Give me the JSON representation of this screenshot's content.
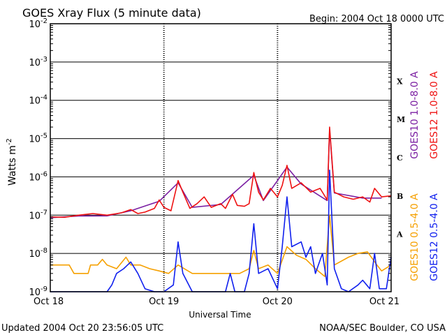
{
  "header": {
    "title": "GOES Xray Flux (5 minute data)",
    "begin": "Begin:  2004 Oct 18 0000 UTC"
  },
  "footer": {
    "updated": "Updated 2004 Oct 20 23:56:05 UTC",
    "credit": "NOAA/SEC Boulder, CO USA"
  },
  "colors": {
    "goes10_long": "#7b1fa2",
    "goes12_long": "#ee1111",
    "goes10_short": "#f5a000",
    "goes12_short": "#1020ee"
  },
  "chart_data": {
    "type": "line",
    "title": "GOES Xray Flux (5 minute data)",
    "xlabel": "Universal Time",
    "ylabel": "Watts m",
    "ylabel_sup": "-2",
    "yscale": "log",
    "ylim": [
      1e-09,
      0.01
    ],
    "xlim": [
      "2004-10-18T00:00",
      "2004-10-21T00:00"
    ],
    "x_ticks": [
      {
        "t": "2004-10-18T00:00",
        "label": "Oct 18"
      },
      {
        "t": "2004-10-19T00:00",
        "label": "Oct 19"
      },
      {
        "t": "2004-10-20T00:00",
        "label": "Oct 20"
      },
      {
        "t": "2004-10-21T00:00",
        "label": "Oct 21"
      }
    ],
    "y_ticks": [
      {
        "v": 1e-09,
        "base": "10",
        "exp": "-9"
      },
      {
        "v": 1e-08,
        "base": "10",
        "exp": "-8"
      },
      {
        "v": 1e-07,
        "base": "10",
        "exp": "-7"
      },
      {
        "v": 1e-06,
        "base": "10",
        "exp": "-6"
      },
      {
        "v": 1e-05,
        "base": "10",
        "exp": "-5"
      },
      {
        "v": 0.0001,
        "base": "10",
        "exp": "-4"
      },
      {
        "v": 0.001,
        "base": "10",
        "exp": "-3"
      },
      {
        "v": 0.01,
        "base": "10",
        "exp": "-2"
      }
    ],
    "flare_classes": [
      {
        "label": "A",
        "v": 3.16e-08
      },
      {
        "label": "B",
        "v": 3.16e-07
      },
      {
        "label": "C",
        "v": 3.16e-06
      },
      {
        "label": "M",
        "v": 3.16e-05
      },
      {
        "label": "X",
        "v": 0.000316
      }
    ],
    "grid": "horizontal at decades; vertical dotted at day boundaries",
    "legend_position": "right",
    "series": [
      {
        "name": "GOES12 1.0-8.0 A",
        "color": "#ee1111",
        "points": [
          [
            "2004-10-18T00:00",
            9e-08
          ],
          [
            "2004-10-18T03:00",
            8.8e-08
          ],
          [
            "2004-10-18T06:00",
            1e-07
          ],
          [
            "2004-10-18T09:00",
            1.1e-07
          ],
          [
            "2004-10-18T12:00",
            1e-07
          ],
          [
            "2004-10-18T15:00",
            1.15e-07
          ],
          [
            "2004-10-18T17:00",
            1.4e-07
          ],
          [
            "2004-10-18T18:30",
            1.1e-07
          ],
          [
            "2004-10-18T20:00",
            1.2e-07
          ],
          [
            "2004-10-18T22:00",
            1.5e-07
          ],
          [
            "2004-10-18T23:00",
            2.5e-07
          ],
          [
            "2004-10-19T00:00",
            1.6e-07
          ],
          [
            "2004-10-19T01:30",
            1.3e-07
          ],
          [
            "2004-10-19T03:00",
            8e-07
          ],
          [
            "2004-10-19T04:00",
            4e-07
          ],
          [
            "2004-10-19T05:30",
            1.5e-07
          ],
          [
            "2004-10-19T07:00",
            2e-07
          ],
          [
            "2004-10-19T08:30",
            3e-07
          ],
          [
            "2004-10-19T10:00",
            1.6e-07
          ],
          [
            "2004-10-19T12:00",
            2e-07
          ],
          [
            "2004-10-19T13:00",
            1.5e-07
          ],
          [
            "2004-10-19T14:30",
            3.5e-07
          ],
          [
            "2004-10-19T15:30",
            1.8e-07
          ],
          [
            "2004-10-19T17:00",
            1.7e-07
          ],
          [
            "2004-10-19T18:00",
            2e-07
          ],
          [
            "2004-10-19T19:00",
            1.3e-06
          ],
          [
            "2004-10-19T20:00",
            4e-07
          ],
          [
            "2004-10-19T21:00",
            2.5e-07
          ],
          [
            "2004-10-19T22:30",
            5e-07
          ],
          [
            "2004-10-20T00:00",
            3e-07
          ],
          [
            "2004-10-20T01:00",
            6e-07
          ],
          [
            "2004-10-20T02:00",
            2e-06
          ],
          [
            "2004-10-20T03:00",
            5e-07
          ],
          [
            "2004-10-20T05:00",
            7e-07
          ],
          [
            "2004-10-20T07:00",
            4e-07
          ],
          [
            "2004-10-20T09:00",
            5e-07
          ],
          [
            "2004-10-20T10:30",
            2.5e-07
          ],
          [
            "2004-10-20T11:00",
            2e-05
          ],
          [
            "2004-10-20T12:00",
            4e-07
          ],
          [
            "2004-10-20T14:00",
            3e-07
          ],
          [
            "2004-10-20T16:00",
            2.6e-07
          ],
          [
            "2004-10-20T18:00",
            3e-07
          ],
          [
            "2004-10-20T19:30",
            2.2e-07
          ],
          [
            "2004-10-20T20:30",
            5e-07
          ],
          [
            "2004-10-20T22:00",
            3e-07
          ],
          [
            "2004-10-21T00:00",
            3.2e-07
          ]
        ]
      },
      {
        "name": "GOES10 1.0-8.0 A",
        "color": "#7b1fa2",
        "points": [
          [
            "2004-10-18T00:00",
            8.6e-08
          ],
          [
            "2004-10-18T06:00",
            9.5e-08
          ],
          [
            "2004-10-18T12:00",
            9.6e-08
          ],
          [
            "2004-10-18T17:00",
            1.3e-07
          ],
          [
            "2004-10-18T23:00",
            2.3e-07
          ],
          [
            "2004-10-19T03:00",
            7e-07
          ],
          [
            "2004-10-19T06:00",
            1.6e-07
          ],
          [
            "2004-10-19T12:00",
            1.9e-07
          ],
          [
            "2004-10-19T19:00",
            1.1e-06
          ],
          [
            "2004-10-19T21:00",
            2.4e-07
          ],
          [
            "2004-10-20T02:00",
            1.8e-06
          ],
          [
            "2004-10-20T05:00",
            6.5e-07
          ],
          [
            "2004-10-20T10:30",
            2.4e-07
          ],
          [
            "2004-10-20T11:00",
            1.7e-05
          ],
          [
            "2004-10-20T12:00",
            3.8e-07
          ],
          [
            "2004-10-20T18:00",
            2.8e-07
          ],
          [
            "2004-10-20T22:00",
            2.8e-07
          ]
        ]
      },
      {
        "name": "GOES10 0.5-4.0 A",
        "color": "#f5a000",
        "points": [
          [
            "2004-10-18T00:00",
            5e-09
          ],
          [
            "2004-10-18T04:00",
            5e-09
          ],
          [
            "2004-10-18T05:00",
            3e-09
          ],
          [
            "2004-10-18T08:00",
            3e-09
          ],
          [
            "2004-10-18T08:30",
            5e-09
          ],
          [
            "2004-10-18T10:00",
            5e-09
          ],
          [
            "2004-10-18T11:00",
            7e-09
          ],
          [
            "2004-10-18T12:00",
            5e-09
          ],
          [
            "2004-10-18T14:00",
            4e-09
          ],
          [
            "2004-10-18T16:00",
            8e-09
          ],
          [
            "2004-10-18T17:00",
            5e-09
          ],
          [
            "2004-10-18T19:00",
            5e-09
          ],
          [
            "2004-10-18T21:00",
            4e-09
          ],
          [
            "2004-10-18T23:00",
            3.5e-09
          ],
          [
            "2004-10-19T01:00",
            3e-09
          ],
          [
            "2004-10-19T03:00",
            5e-09
          ],
          [
            "2004-10-19T06:00",
            3e-09
          ],
          [
            "2004-10-19T09:00",
            3e-09
          ],
          [
            "2004-10-19T12:00",
            3e-09
          ],
          [
            "2004-10-19T16:00",
            3e-09
          ],
          [
            "2004-10-19T18:00",
            4e-09
          ],
          [
            "2004-10-19T19:00",
            1.2e-08
          ],
          [
            "2004-10-19T20:00",
            4e-09
          ],
          [
            "2004-10-19T22:00",
            5e-09
          ],
          [
            "2004-10-20T00:00",
            3e-09
          ],
          [
            "2004-10-20T02:00",
            1.5e-08
          ],
          [
            "2004-10-20T04:00",
            9e-09
          ],
          [
            "2004-10-20T06:00",
            7e-09
          ],
          [
            "2004-10-20T08:00",
            4e-09
          ],
          [
            "2004-10-20T10:00",
            2.5e-09
          ],
          [
            "2004-10-20T11:00",
            1e-07
          ],
          [
            "2004-10-20T12:00",
            5e-09
          ],
          [
            "2004-10-20T15:00",
            8e-09
          ],
          [
            "2004-10-20T17:00",
            1e-08
          ],
          [
            "2004-10-20T19:00",
            1.1e-08
          ],
          [
            "2004-10-20T21:00",
            5e-09
          ],
          [
            "2004-10-20T22:00",
            3.5e-09
          ],
          [
            "2004-10-21T00:00",
            5e-09
          ]
        ]
      },
      {
        "name": "GOES12 0.5-4.0 A",
        "color": "#1020ee",
        "points": [
          [
            "2004-10-18T00:00",
            1e-09
          ],
          [
            "2004-10-18T12:00",
            1e-09
          ],
          [
            "2004-10-18T13:00",
            1.5e-09
          ],
          [
            "2004-10-18T14:00",
            3e-09
          ],
          [
            "2004-10-18T15:30",
            4e-09
          ],
          [
            "2004-10-18T17:00",
            6e-09
          ],
          [
            "2004-10-18T18:30",
            3e-09
          ],
          [
            "2004-10-18T20:00",
            1.2e-09
          ],
          [
            "2004-10-18T22:00",
            1e-09
          ],
          [
            "2004-10-19T00:00",
            1e-09
          ],
          [
            "2004-10-19T02:00",
            1.5e-09
          ],
          [
            "2004-10-19T03:00",
            2e-08
          ],
          [
            "2004-10-19T04:00",
            3e-09
          ],
          [
            "2004-10-19T06:00",
            1e-09
          ],
          [
            "2004-10-19T10:00",
            1e-09
          ],
          [
            "2004-10-19T13:00",
            1e-09
          ],
          [
            "2004-10-19T14:00",
            3e-09
          ],
          [
            "2004-10-19T15:00",
            1e-09
          ],
          [
            "2004-10-19T17:00",
            1e-09
          ],
          [
            "2004-10-19T18:00",
            3e-09
          ],
          [
            "2004-10-19T19:00",
            6e-08
          ],
          [
            "2004-10-19T20:00",
            3e-09
          ],
          [
            "2004-10-19T22:00",
            4e-09
          ],
          [
            "2004-10-20T00:00",
            1.2e-09
          ],
          [
            "2004-10-20T01:00",
            1.5e-08
          ],
          [
            "2004-10-20T02:00",
            3e-07
          ],
          [
            "2004-10-20T03:00",
            1.5e-08
          ],
          [
            "2004-10-20T05:00",
            2e-08
          ],
          [
            "2004-10-20T06:00",
            8e-09
          ],
          [
            "2004-10-20T07:00",
            1.5e-08
          ],
          [
            "2004-10-20T08:00",
            3e-09
          ],
          [
            "2004-10-20T09:30",
            1e-08
          ],
          [
            "2004-10-20T10:30",
            1.5e-09
          ],
          [
            "2004-10-20T11:00",
            1.5e-06
          ],
          [
            "2004-10-20T12:00",
            4e-09
          ],
          [
            "2004-10-20T13:30",
            1.2e-09
          ],
          [
            "2004-10-20T15:00",
            1e-09
          ],
          [
            "2004-10-20T17:00",
            1.5e-09
          ],
          [
            "2004-10-20T18:00",
            2e-09
          ],
          [
            "2004-10-20T19:30",
            1.2e-09
          ],
          [
            "2004-10-20T20:30",
            1e-08
          ],
          [
            "2004-10-20T21:30",
            1.2e-09
          ],
          [
            "2004-10-20T23:00",
            1.2e-09
          ],
          [
            "2004-10-21T00:00",
            8e-09
          ]
        ]
      }
    ],
    "legend": [
      {
        "label": "GOES10 1.0-8.0 A",
        "color": "#7b1fa2"
      },
      {
        "label": "GOES12 1.0-8.0 A",
        "color": "#ee1111"
      },
      {
        "label": "GOES10 0.5-4.0 A",
        "color": "#f5a000"
      },
      {
        "label": "GOES12 0.5-4.0 A",
        "color": "#1020ee"
      }
    ]
  }
}
